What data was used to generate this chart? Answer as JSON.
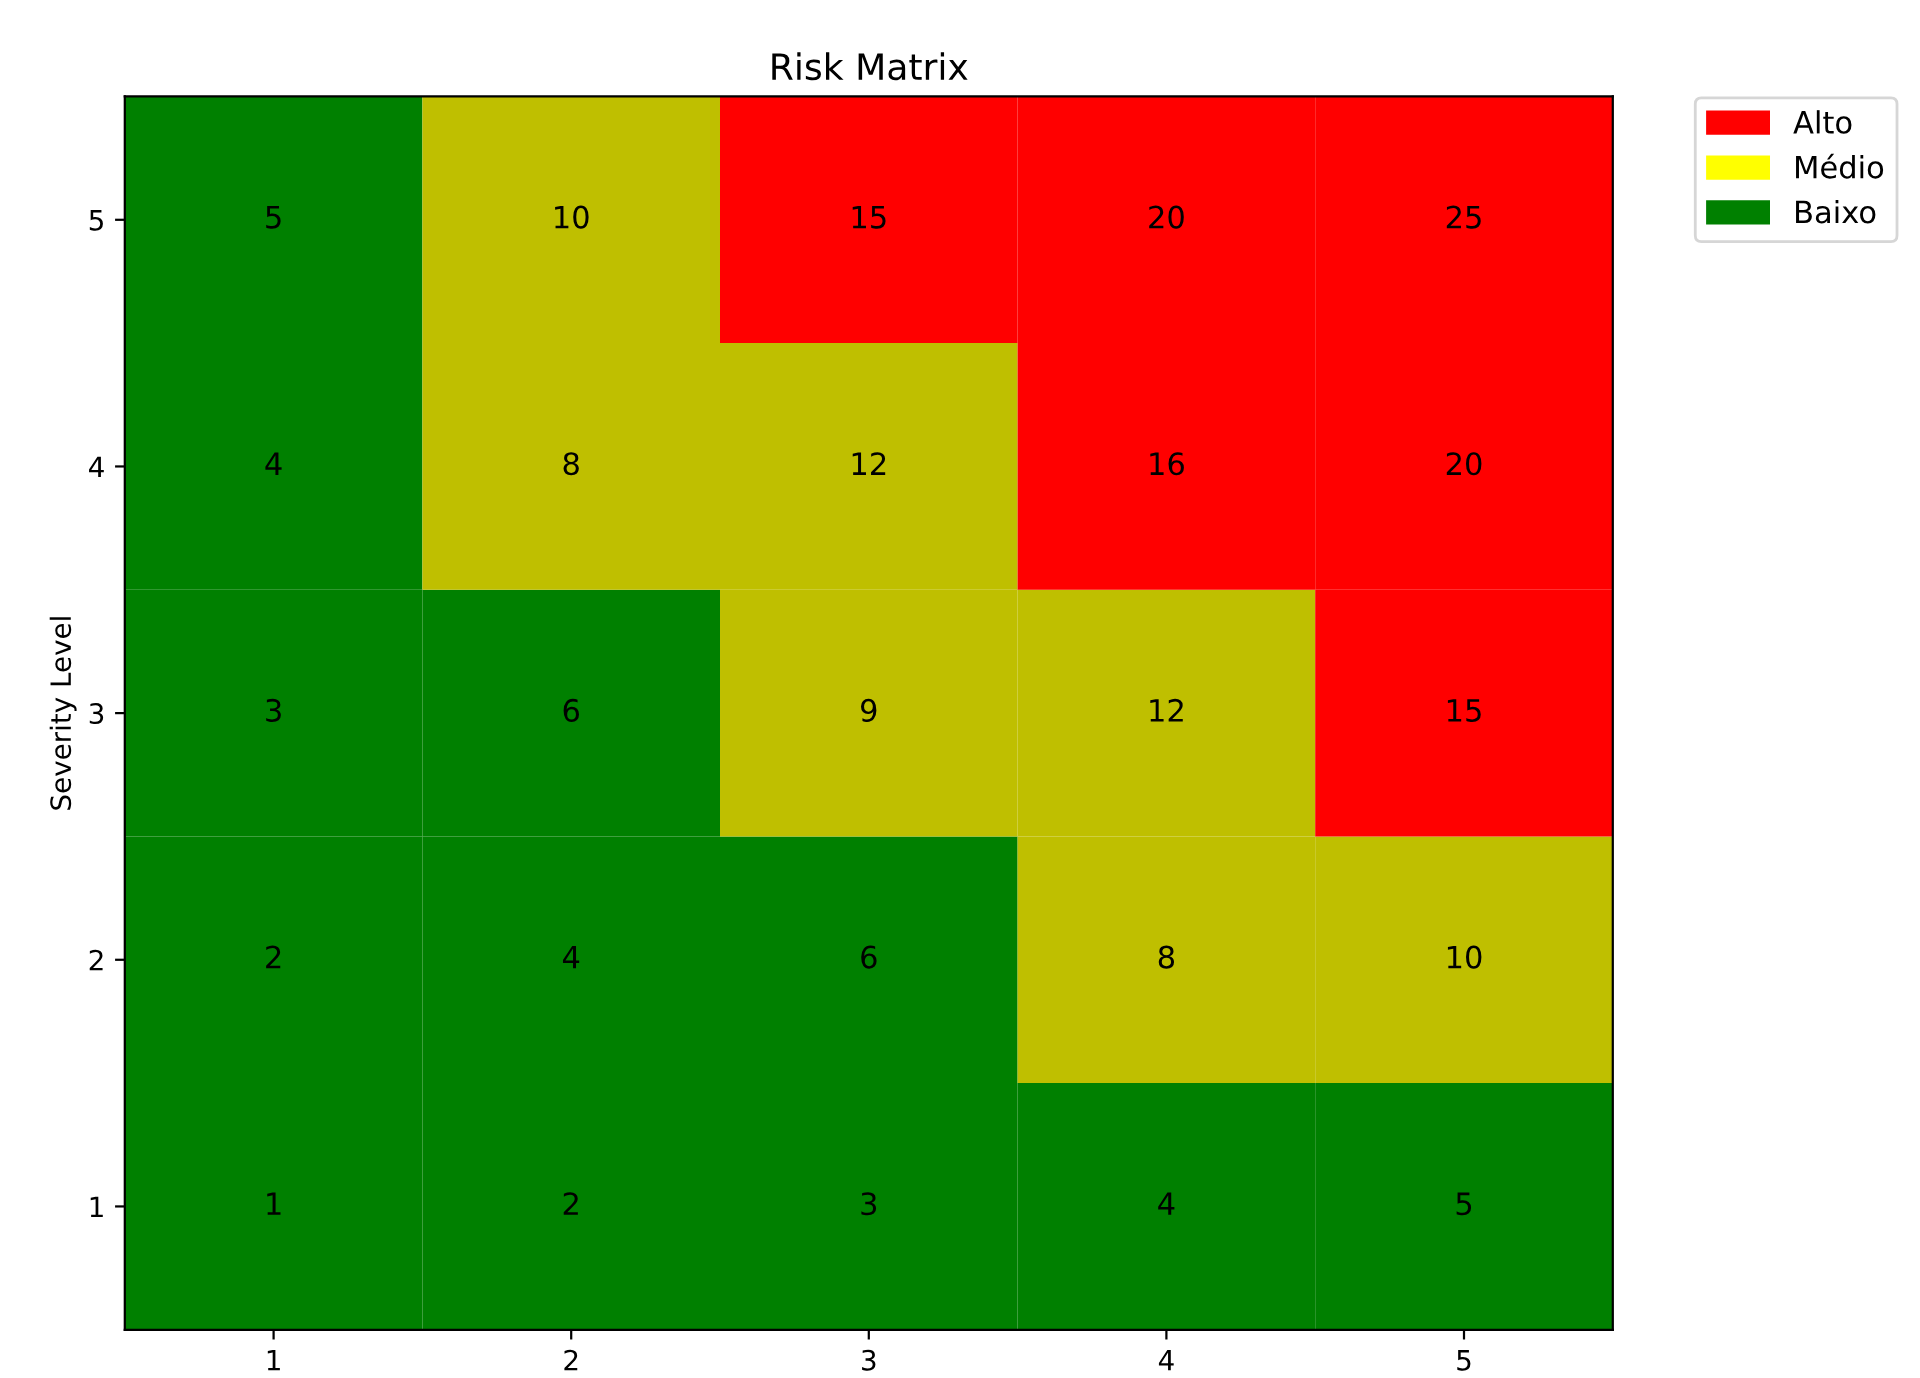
{
  "chart_data": [
    {
      "type": "heatmap",
      "title": "Risk Matrix",
      "ylabel": "Severity Level",
      "categories": [
        "1",
        "2",
        "3",
        "4",
        "5"
      ],
      "y_categories": [
        "5",
        "4",
        "3",
        "2",
        "1"
      ],
      "cells": [
        [
          5,
          10,
          15,
          20,
          25
        ],
        [
          4,
          8,
          12,
          16,
          20
        ],
        [
          3,
          6,
          9,
          12,
          15
        ],
        [
          2,
          4,
          6,
          8,
          10
        ],
        [
          1,
          2,
          3,
          4,
          5
        ]
      ],
      "colors": [
        [
          "#008000",
          "#bfbf00",
          "#ff0000",
          "#ff0000",
          "#ff0000"
        ],
        [
          "#008000",
          "#bfbf00",
          "#bfbf00",
          "#ff0000",
          "#ff0000"
        ],
        [
          "#008000",
          "#008000",
          "#bfbf00",
          "#bfbf00",
          "#ff0000"
        ],
        [
          "#008000",
          "#008000",
          "#008000",
          "#bfbf00",
          "#bfbf00"
        ],
        [
          "#008000",
          "#008000",
          "#008000",
          "#008000",
          "#008000"
        ]
      ],
      "data_labels": true
    },
    {
      "type": "other",
      "categories": [
        "Alto",
        "Médio",
        "Baixo"
      ],
      "colors": [
        "#ff0000",
        "#ffff00",
        "#008000"
      ]
    }
  ]
}
